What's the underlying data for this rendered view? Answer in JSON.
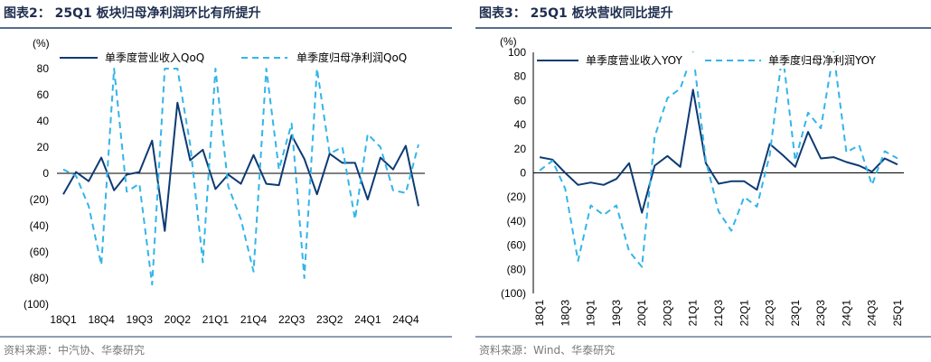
{
  "charts": [
    {
      "title": "图表2： 25Q1 板块归母净利润环比有所提升",
      "source": "资料来源：中汽协、华泰研究",
      "unit": "(%)",
      "colors": {
        "series1": "#0d3b73",
        "series2": "#33b5e8"
      },
      "chart_data": {
        "type": "line",
        "ylim": [
          -100,
          80
        ],
        "y_ticks": [
          80,
          60,
          40,
          20,
          0,
          -20,
          -40,
          -60,
          -80,
          -100
        ],
        "y_tick_labels": [
          "80",
          "60",
          "40",
          "20",
          "0",
          "(20)",
          "(40)",
          "(60)",
          "(80)",
          "(100)"
        ],
        "x_tick_labels": [
          "18Q1",
          "18Q4",
          "19Q3",
          "20Q2",
          "21Q1",
          "21Q4",
          "22Q3",
          "23Q2",
          "24Q1",
          "24Q4"
        ],
        "categories": [
          "18Q1",
          "18Q2",
          "18Q3",
          "18Q4",
          "19Q1",
          "19Q2",
          "19Q3",
          "19Q4",
          "20Q1",
          "20Q2",
          "20Q3",
          "20Q4",
          "21Q1",
          "21Q2",
          "21Q3",
          "21Q4",
          "22Q1",
          "22Q2",
          "22Q3",
          "22Q4",
          "23Q1",
          "23Q2",
          "23Q3",
          "23Q4",
          "24Q1",
          "24Q2",
          "24Q3",
          "24Q4",
          "25Q1"
        ],
        "series": [
          {
            "name": "单季度营业收入QoQ",
            "style": "solid",
            "values": [
              -16,
              1,
              -6,
              12,
              -13,
              -1,
              1,
              25,
              -44,
              54,
              10,
              18,
              -12,
              -1,
              -8,
              14,
              -8,
              -9,
              29,
              11,
              -16,
              15,
              8,
              8,
              -20,
              12,
              3,
              21,
              -25
            ]
          },
          {
            "name": "单季度归母净利润QoQ",
            "style": "dashed",
            "values": [
              3,
              -2,
              -25,
              -70,
              80,
              -14,
              -8,
              -85,
              80,
              80,
              22,
              -68,
              80,
              -10,
              -35,
              -75,
              80,
              3,
              38,
              -80,
              80,
              15,
              20,
              -35,
              30,
              20,
              -13,
              -15,
              22
            ]
          }
        ]
      }
    },
    {
      "title": "图表3： 25Q1 板块营收同比提升",
      "source": "资料来源：Wind、华泰研究",
      "unit": "(%)",
      "colors": {
        "series1": "#0d3b73",
        "series2": "#33b5e8"
      },
      "chart_data": {
        "type": "line",
        "ylim": [
          -100,
          100
        ],
        "y_ticks": [
          100,
          80,
          60,
          40,
          20,
          0,
          -20,
          -40,
          -60,
          -80,
          -100
        ],
        "y_tick_labels": [
          "100",
          "80",
          "60",
          "40",
          "20",
          "0",
          "(20)",
          "(40)",
          "(60)",
          "(80)",
          "(100)"
        ],
        "x_tick_labels": [
          "18Q1",
          "18Q3",
          "19Q1",
          "19Q3",
          "20Q1",
          "20Q3",
          "21Q1",
          "21Q3",
          "22Q1",
          "22Q3",
          "23Q1",
          "23Q3",
          "24Q1",
          "24Q3",
          "25Q1"
        ],
        "categories": [
          "18Q1",
          "18Q2",
          "18Q3",
          "18Q4",
          "19Q1",
          "19Q2",
          "19Q3",
          "19Q4",
          "20Q1",
          "20Q2",
          "20Q3",
          "20Q4",
          "21Q1",
          "21Q2",
          "21Q3",
          "21Q4",
          "22Q1",
          "22Q2",
          "22Q3",
          "22Q4",
          "23Q1",
          "23Q2",
          "23Q3",
          "23Q4",
          "24Q1",
          "24Q2",
          "24Q3",
          "24Q4",
          "25Q1"
        ],
        "series": [
          {
            "name": "单季度营业收入YOY",
            "style": "solid",
            "values": [
              13,
              11,
              0,
              -10,
              -8,
              -10,
              -5,
              8,
              -33,
              6,
              14,
              5,
              69,
              8,
              -9,
              -7,
              -7,
              -14,
              24,
              15,
              5,
              34,
              12,
              13,
              9,
              6,
              1,
              12,
              7
            ]
          },
          {
            "name": "单季度归母净利润YOY",
            "style": "dashed",
            "values": [
              2,
              10,
              -13,
              -73,
              -27,
              -35,
              -27,
              -65,
              -78,
              30,
              62,
              70,
              100,
              10,
              -32,
              -48,
              -20,
              -28,
              15,
              100,
              10,
              50,
              37,
              100,
              17,
              23,
              -10,
              18,
              12
            ]
          }
        ]
      }
    }
  ]
}
